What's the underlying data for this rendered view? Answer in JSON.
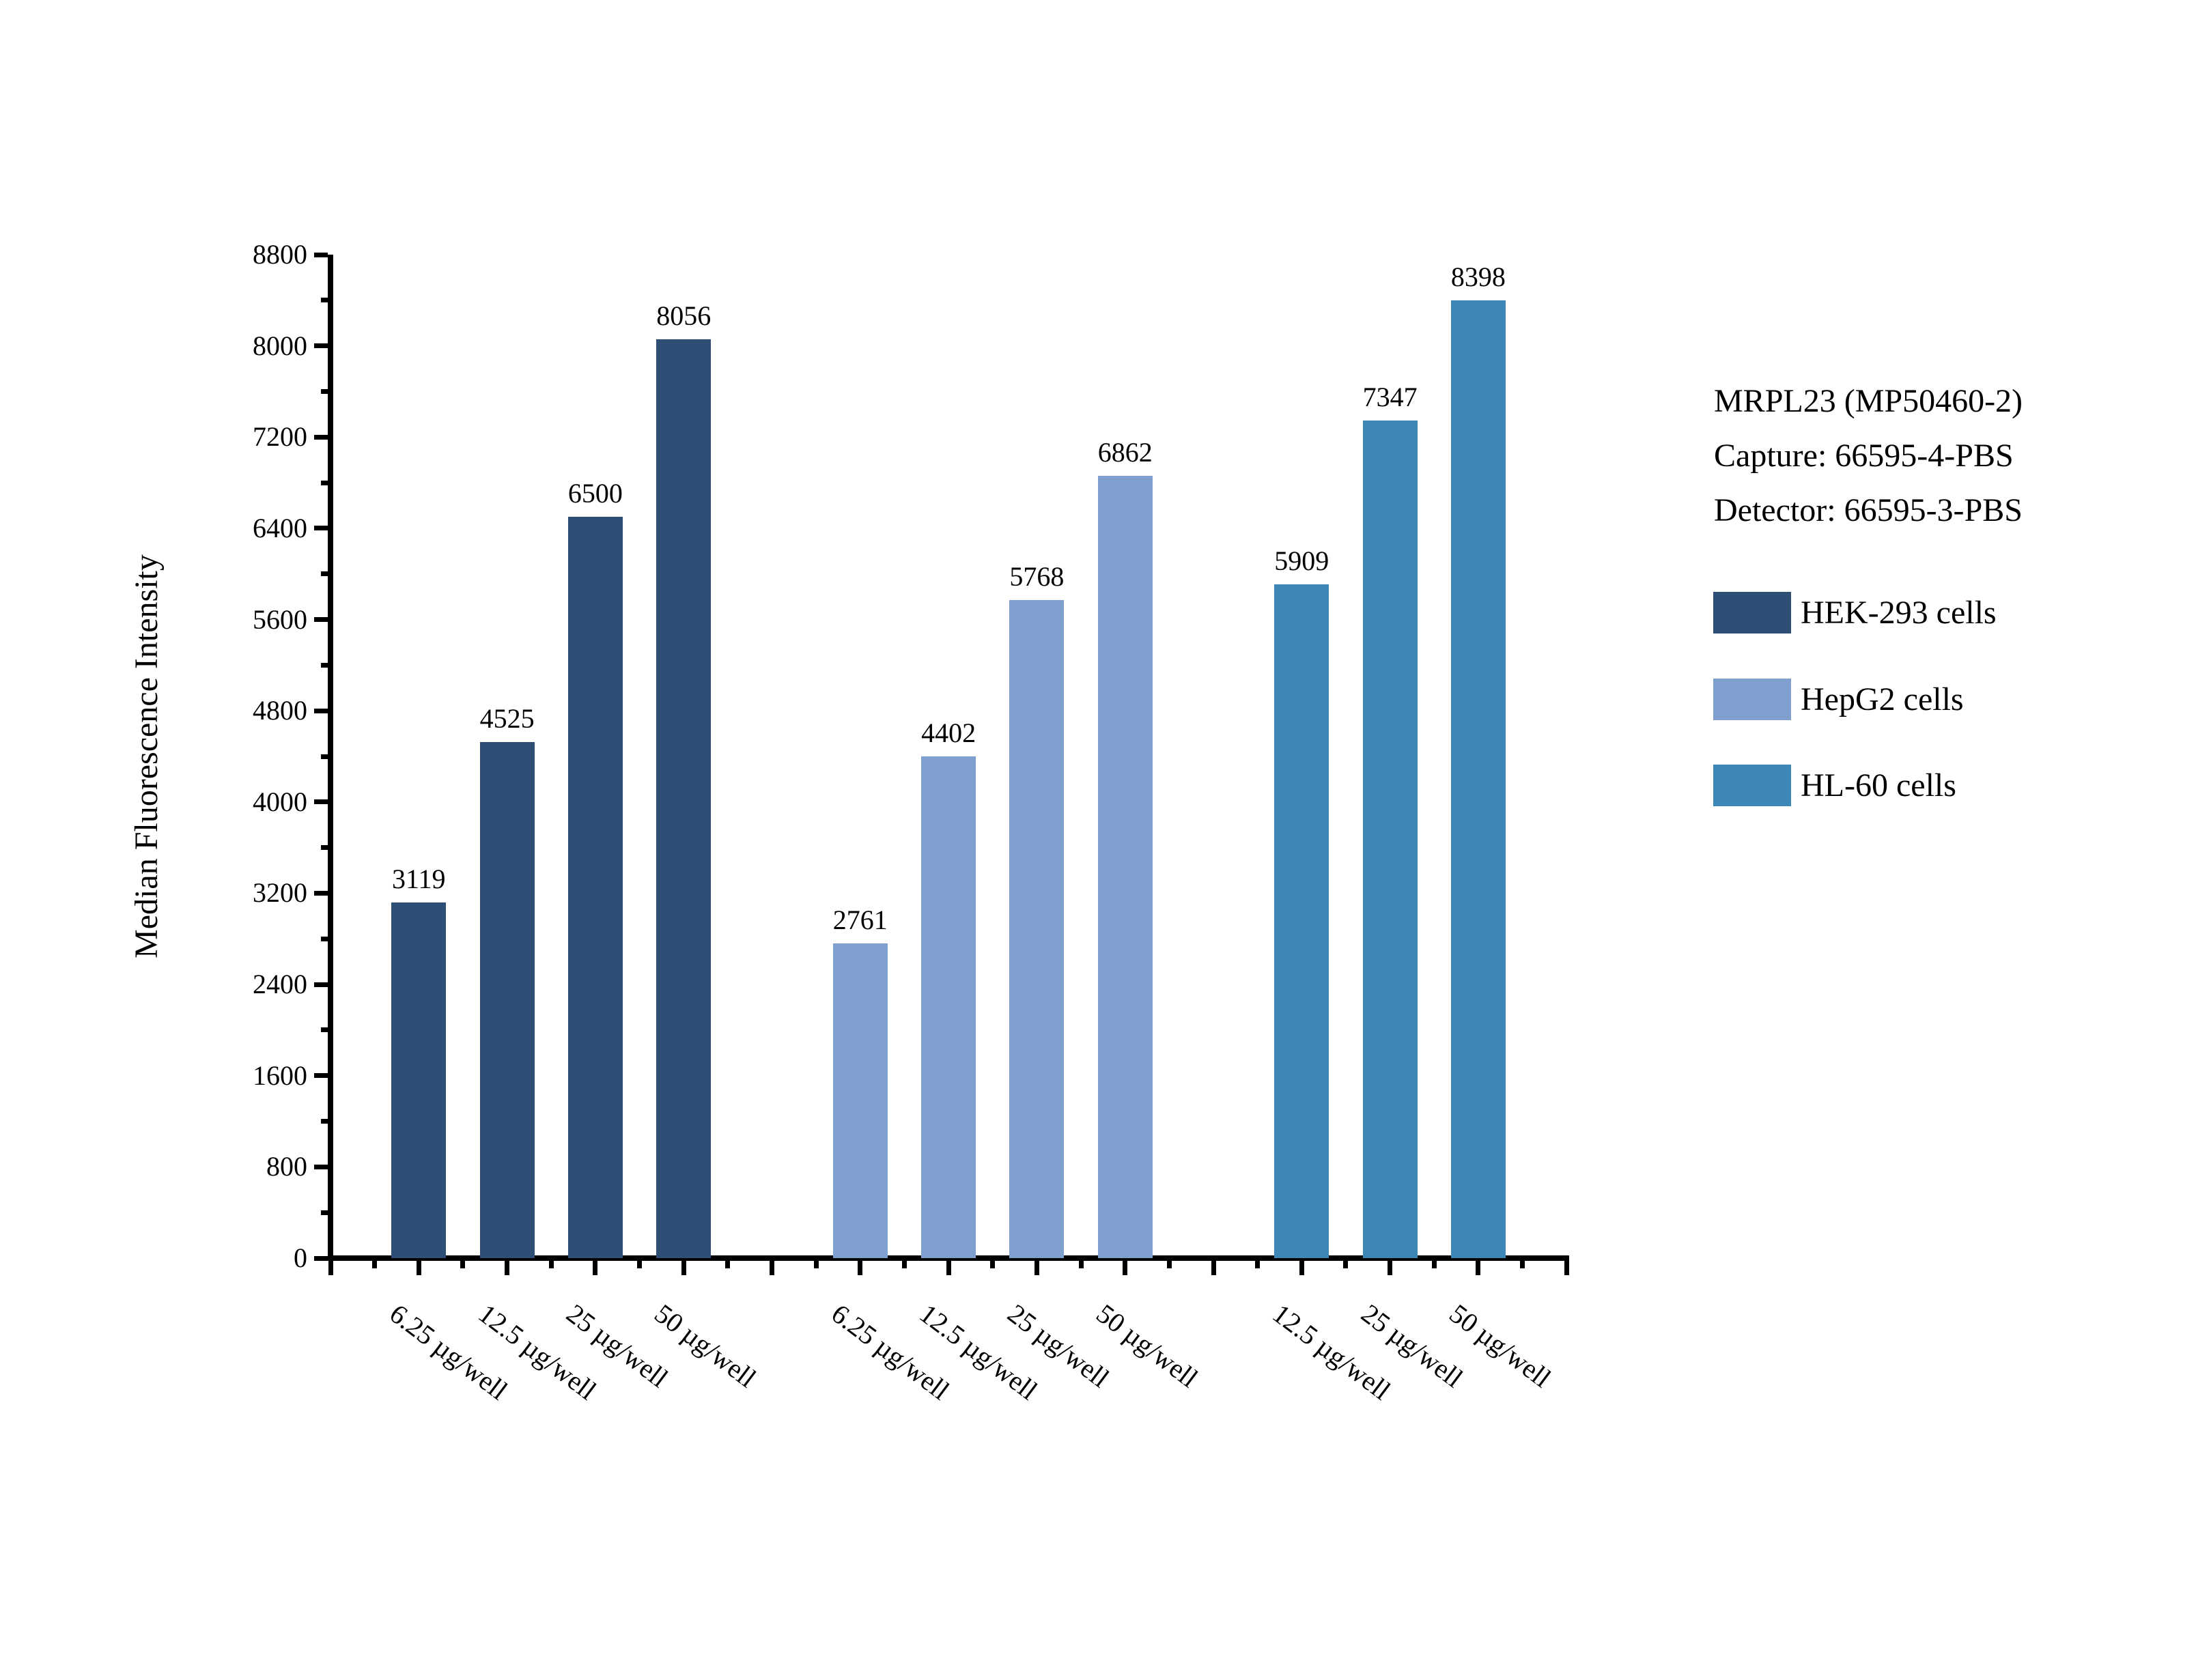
{
  "chart_data": {
    "type": "bar",
    "title": "",
    "xlabel": "",
    "ylabel": "Median Fluorescence Intensity",
    "ylim": [
      0,
      8800
    ],
    "y_major_step": 800,
    "y_minor_step": 400,
    "y_ticks": [
      0,
      800,
      1600,
      2400,
      3200,
      4000,
      4800,
      5600,
      6400,
      7200,
      8000,
      8800
    ],
    "grid": false,
    "legend_position": "right-of-plot",
    "bar_value_labels": true,
    "series": [
      {
        "name": "HEK-293 cells",
        "color": "#2F4E75",
        "bars": [
          {
            "slot": 1,
            "category": "6.25 µg/well",
            "value": 3119
          },
          {
            "slot": 2,
            "category": "12.5 µg/well",
            "value": 4525
          },
          {
            "slot": 3,
            "category": "25 µg/well",
            "value": 6500
          },
          {
            "slot": 4,
            "category": "50 µg/well",
            "value": 8056
          }
        ]
      },
      {
        "name": "HepG2 cells",
        "color": "#7F9FCE",
        "bars": [
          {
            "slot": 6,
            "category": "6.25 µg/well",
            "value": 2761
          },
          {
            "slot": 7,
            "category": "12.5 µg/well",
            "value": 4402
          },
          {
            "slot": 8,
            "category": "25 µg/well",
            "value": 5768
          },
          {
            "slot": 9,
            "category": "50 µg/well",
            "value": 6862
          }
        ]
      },
      {
        "name": "HL-60 cells",
        "color": "#3C87B6",
        "bars": [
          {
            "slot": 11,
            "category": "12.5 µg/well",
            "value": 5909
          },
          {
            "slot": 12,
            "category": "25 µg/well",
            "value": 7347
          },
          {
            "slot": 13,
            "category": "50 µg/well",
            "value": 8398
          }
        ]
      }
    ]
  },
  "annotation": {
    "line1": "MRPL23 (MP50460-2)",
    "line2": "Capture: 66595-4-PBS",
    "line3": "Detector: 66595-3-PBS"
  },
  "colors": {
    "axis": "#000000",
    "text": "#000000",
    "background": "#ffffff"
  }
}
